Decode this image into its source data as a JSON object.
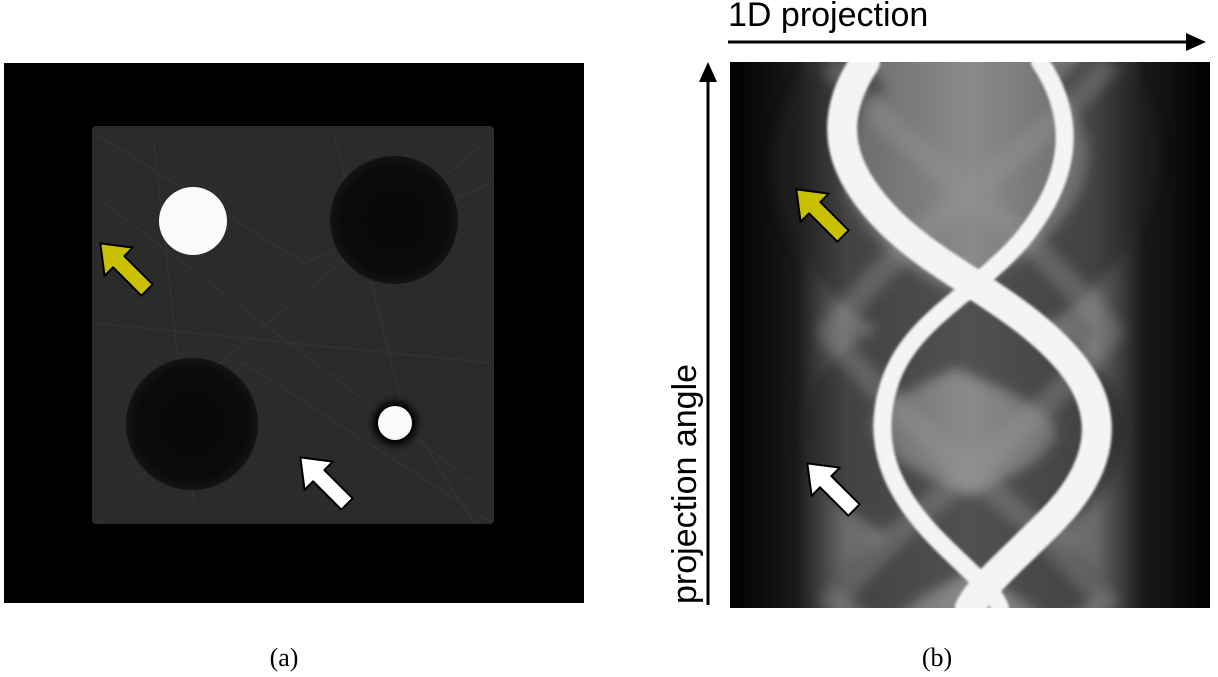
{
  "figure": {
    "panel_a": {
      "caption": "(a)",
      "icons": [
        "yellow-arrow-icon",
        "white-arrow-icon"
      ]
    },
    "panel_b": {
      "caption": "(b)",
      "x_axis_label": "1D projection",
      "y_axis_label": "projection angle",
      "icons": [
        "yellow-arrow-icon",
        "white-arrow-icon"
      ]
    },
    "colors": {
      "background": "#000000",
      "phantom_square": "#2c2c2c",
      "arrow_yellow": "#c8c000",
      "arrow_white": "#ffffff"
    }
  }
}
